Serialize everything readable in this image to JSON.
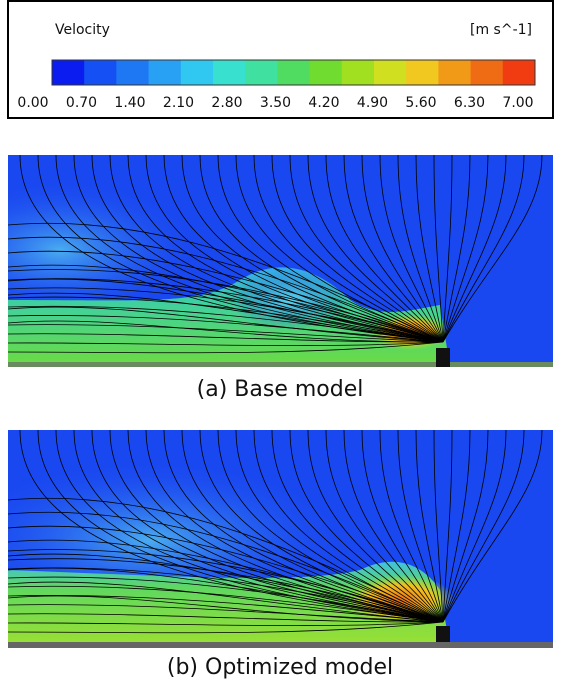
{
  "legend": {
    "title": "Velocity",
    "unit": "[m s^-1]",
    "ticks": [
      "0.00",
      "0.70",
      "1.40",
      "2.10",
      "2.80",
      "3.50",
      "4.20",
      "4.90",
      "5.60",
      "6.30",
      "7.00"
    ]
  },
  "panels": [
    {
      "caption": "(a) Base model"
    },
    {
      "caption": "(b) Optimized model"
    }
  ]
}
